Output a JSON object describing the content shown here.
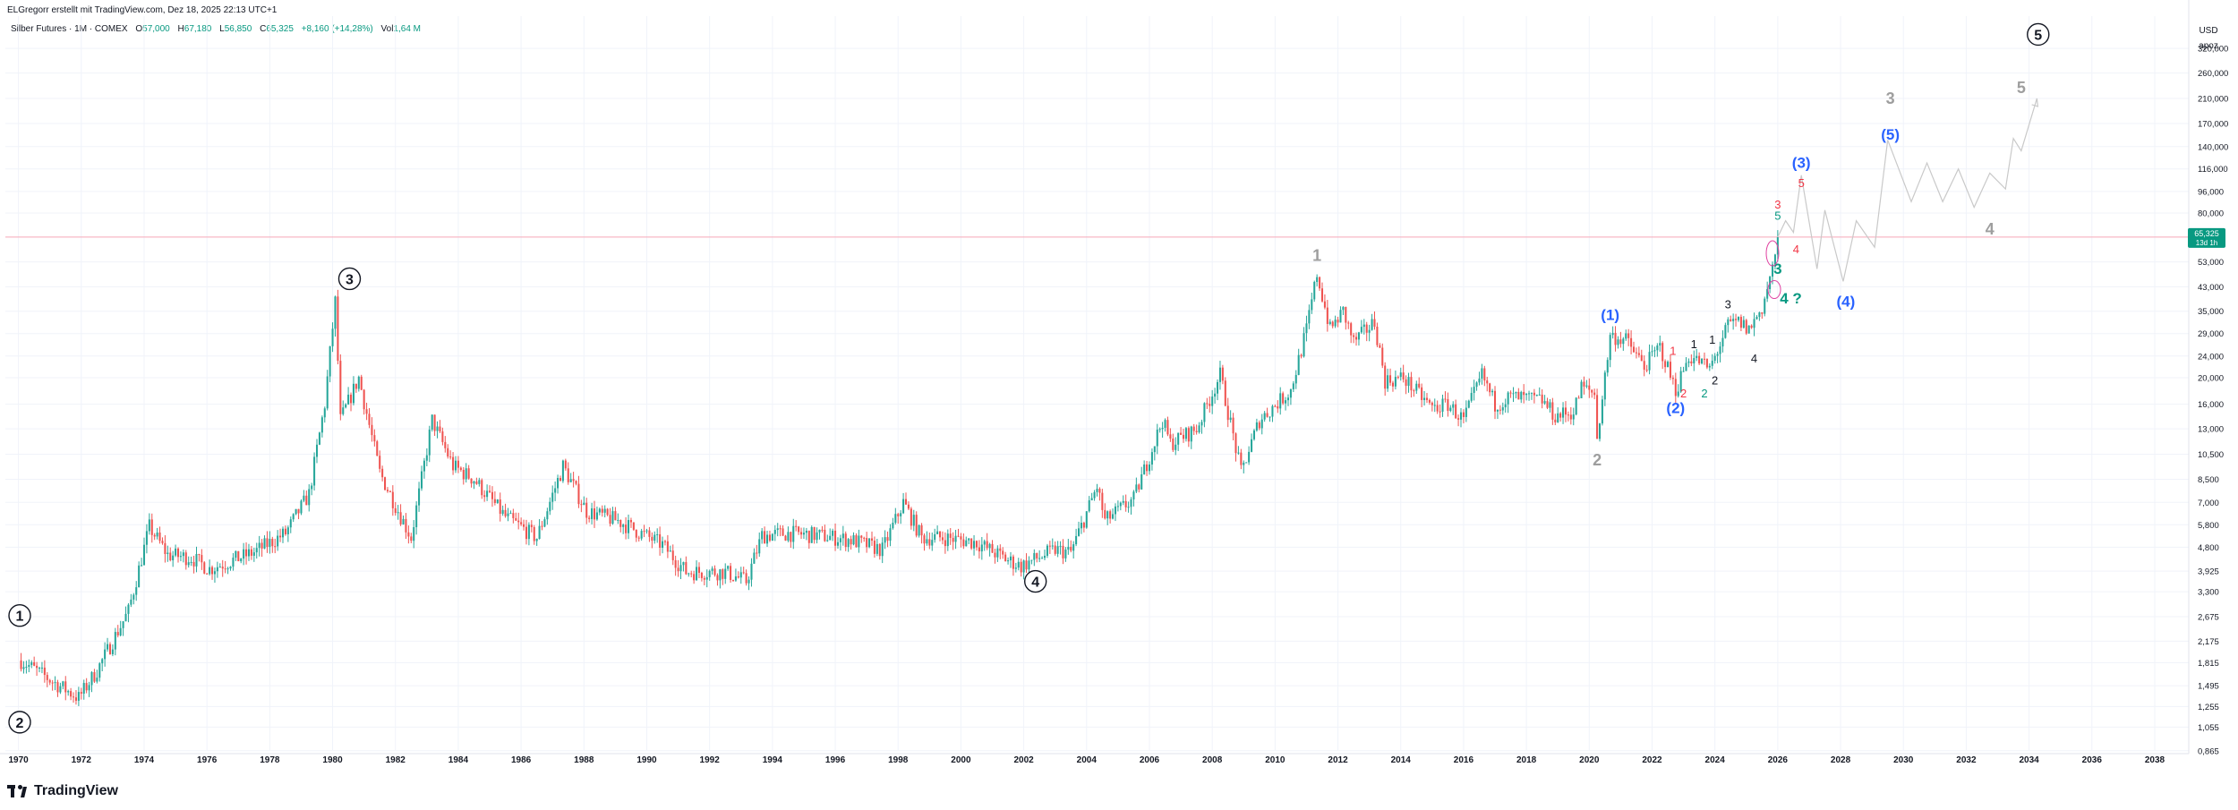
{
  "header": {
    "credit": "ELGregorr erstellt mit TradingView.com, Dez 18, 2025 22:13 UTC+1"
  },
  "symbol": {
    "name": "Silber Futures · 1M · COMEX",
    "open_key": "O",
    "open": "57,000",
    "high_key": "H",
    "high": "67,180",
    "low_key": "L",
    "low": "56,850",
    "close_key": "C",
    "close": "65,325",
    "change": "+8,160 (+14,28%)",
    "vol_key": "Vol",
    "vol": "1,64 M"
  },
  "axis_units": {
    "currency": "USD",
    "scale": "apoz"
  },
  "current_price": {
    "value": "65,325",
    "countdown": "13d 1h"
  },
  "footer": {
    "brand": "TradingView"
  },
  "chart_data": {
    "type": "candlestick",
    "x_axis": {
      "type": "date",
      "range": [
        "1969-07",
        "2039-01"
      ],
      "tick_labels": [
        "1970",
        "1972",
        "1974",
        "1976",
        "1978",
        "1980",
        "1982",
        "1984",
        "1986",
        "1988",
        "1990",
        "1992",
        "1994",
        "1996",
        "1998",
        "2000",
        "2002",
        "2004",
        "2006",
        "2008",
        "2010",
        "2012",
        "2014",
        "2016",
        "2018",
        "2020",
        "2022",
        "2024",
        "2026",
        "2028",
        "2030",
        "2032",
        "2034",
        "2036",
        "2038"
      ]
    },
    "y_axis": {
      "scale": "log",
      "range": [
        0.87,
        420
      ],
      "tick_labels": [
        "320,000",
        "260,000",
        "210,000",
        "170,000",
        "140,000",
        "116,000",
        "96,000",
        "80,000",
        "65,325",
        "53,000",
        "43,000",
        "35,000",
        "29,000",
        "24,000",
        "20,000",
        "16,000",
        "13,000",
        "10,500",
        "8,500",
        "7,000",
        "5,800",
        "4,800",
        "3,925",
        "3,300",
        "2,675",
        "2,175",
        "1,815",
        "1,495",
        "1,255",
        "1,055",
        "0,865"
      ]
    },
    "current_price_line": 65.325,
    "up_color": "#26a69a",
    "down_color": "#ef5350",
    "price_path": [
      [
        "1970-01",
        1.85
      ],
      [
        "1971-01",
        1.55
      ],
      [
        "1971-11",
        1.35
      ],
      [
        "1972-06",
        1.7
      ],
      [
        "1973-06",
        2.8
      ],
      [
        "1974-02",
        5.7
      ],
      [
        "1974-09",
        4.5
      ],
      [
        "1975-06",
        4.4
      ],
      [
        "1976-01",
        4.0
      ],
      [
        "1977-06",
        4.6
      ],
      [
        "1978-06",
        5.4
      ],
      [
        "1979-03",
        7.5
      ],
      [
        "1979-09",
        16.0
      ],
      [
        "1980-01",
        38.0
      ],
      [
        "1980-03",
        14.0
      ],
      [
        "1980-10",
        20.0
      ],
      [
        "1981-06",
        9.0
      ],
      [
        "1982-06",
        5.2
      ],
      [
        "1983-02",
        14.0
      ],
      [
        "1983-10",
        9.5
      ],
      [
        "1984-06",
        8.5
      ],
      [
        "1985-06",
        6.2
      ],
      [
        "1986-06",
        5.2
      ],
      [
        "1987-04",
        9.5
      ],
      [
        "1988-01",
        6.5
      ],
      [
        "1989-01",
        6.0
      ],
      [
        "1990-06",
        4.9
      ],
      [
        "1991-03",
        3.9
      ],
      [
        "1992-06",
        3.9
      ],
      [
        "1993-02",
        3.6
      ],
      [
        "1993-08",
        5.3
      ],
      [
        "1994-06",
        5.4
      ],
      [
        "1995-06",
        5.3
      ],
      [
        "1996-06",
        5.1
      ],
      [
        "1997-06",
        4.7
      ],
      [
        "1998-02",
        7.0
      ],
      [
        "1998-09",
        5.2
      ],
      [
        "1999-06",
        5.2
      ],
      [
        "2000-06",
        5.0
      ],
      [
        "2001-06",
        4.3
      ],
      [
        "2001-11",
        4.1
      ],
      [
        "2002-12",
        4.7
      ],
      [
        "2003-06",
        4.6
      ],
      [
        "2004-04",
        8.0
      ],
      [
        "2004-07",
        6.0
      ],
      [
        "2005-06",
        7.2
      ],
      [
        "2006-05",
        14.0
      ],
      [
        "2006-08",
        11.5
      ],
      [
        "2007-06",
        13.0
      ],
      [
        "2008-03",
        20.5
      ],
      [
        "2008-11",
        9.0
      ],
      [
        "2009-06",
        14.0
      ],
      [
        "2010-06",
        18.0
      ],
      [
        "2010-12",
        30.0
      ],
      [
        "2011-04",
        48.0
      ],
      [
        "2011-09",
        30.0
      ],
      [
        "2012-02",
        35.0
      ],
      [
        "2012-06",
        27.0
      ],
      [
        "2013-02",
        32.0
      ],
      [
        "2013-06",
        19.5
      ],
      [
        "2014-01",
        20.0
      ],
      [
        "2014-12",
        15.5
      ],
      [
        "2015-06",
        16.0
      ],
      [
        "2015-12",
        14.0
      ],
      [
        "2016-07",
        20.5
      ],
      [
        "2016-12",
        16.0
      ],
      [
        "2017-06",
        17.0
      ],
      [
        "2018-06",
        16.5
      ],
      [
        "2018-11",
        14.5
      ],
      [
        "2019-06",
        15.0
      ],
      [
        "2019-09",
        18.5
      ],
      [
        "2020-02",
        17.5
      ],
      [
        "2020-03",
        12.0
      ],
      [
        "2020-08",
        28.5
      ],
      [
        "2021-02",
        27.5
      ],
      [
        "2021-09",
        22.0
      ],
      [
        "2022-03",
        26.0
      ],
      [
        "2022-09",
        18.0
      ],
      [
        "2023-02",
        24.0
      ],
      [
        "2023-06",
        23.0
      ],
      [
        "2023-10",
        21.5
      ],
      [
        "2024-05",
        31.0
      ],
      [
        "2024-09",
        32.0
      ],
      [
        "2025-01",
        30.0
      ],
      [
        "2025-06",
        36.0
      ],
      [
        "2025-10",
        50.0
      ],
      [
        "2025-11",
        57.0
      ],
      [
        "2025-12",
        65.3
      ]
    ],
    "wave_labels": [
      {
        "text": "1",
        "x": "1969-07",
        "y": 2.7,
        "style": "circle"
      },
      {
        "text": "2",
        "x": "1969-07",
        "y": 1.1,
        "style": "circle"
      },
      {
        "text": "3",
        "x": "1980-01",
        "y": 46.0,
        "style": "circle"
      },
      {
        "text": "4",
        "x": "2001-11",
        "y": 3.6,
        "style": "circle"
      },
      {
        "text": "5",
        "x": "2033-10",
        "y": 360.0,
        "style": "circle"
      },
      {
        "text": "1",
        "x": "2011-04",
        "y": 56.0,
        "style": "gray"
      },
      {
        "text": "2",
        "x": "2020-03",
        "y": 10.0,
        "style": "gray"
      },
      {
        "text": "3",
        "x": "2029-07",
        "y": 210.0,
        "style": "gray"
      },
      {
        "text": "4",
        "x": "2032-09",
        "y": 70.0,
        "style": "gray"
      },
      {
        "text": "5",
        "x": "2033-09",
        "y": 230.0,
        "style": "gray"
      },
      {
        "text": "(1)",
        "x": "2020-08",
        "y": 34.0,
        "style": "blue"
      },
      {
        "text": "(2)",
        "x": "2022-09",
        "y": 15.5,
        "style": "blue"
      },
      {
        "text": "(3)",
        "x": "2026-09",
        "y": 122.0,
        "style": "blue"
      },
      {
        "text": "(4)",
        "x": "2028-02",
        "y": 38.0,
        "style": "blue"
      },
      {
        "text": "(5)",
        "x": "2029-07",
        "y": 155.0,
        "style": "blue"
      },
      {
        "text": "1",
        "x": "2022-08",
        "y": 25.0,
        "style": "red"
      },
      {
        "text": "2",
        "x": "2022-12",
        "y": 17.5,
        "style": "red"
      },
      {
        "text": "3",
        "x": "2026-00",
        "y": 86.0,
        "style": "red"
      },
      {
        "text": "4",
        "x": "2026-07",
        "y": 59.0,
        "style": "red"
      },
      {
        "text": "5",
        "x": "2026-09",
        "y": 103.0,
        "style": "red"
      },
      {
        "text": "1",
        "x": "2023-04",
        "y": 26.5,
        "style": "black"
      },
      {
        "text": "2",
        "x": "2024-00",
        "y": 19.5,
        "style": "black"
      },
      {
        "text": "1",
        "x": "2023-11",
        "y": 27.5,
        "style": "black"
      },
      {
        "text": "3",
        "x": "2024-05",
        "y": 37.0,
        "style": "black"
      },
      {
        "text": "4",
        "x": "2025-03",
        "y": 23.5,
        "style": "black"
      },
      {
        "text": "2",
        "x": "2023-08",
        "y": 17.5,
        "style": "green"
      },
      {
        "text": "5",
        "x": "2026-00",
        "y": 78.0,
        "style": "green"
      },
      {
        "text": "3",
        "x": "2026-00",
        "y": 50.0,
        "style": "teal-bold"
      },
      {
        "text": "4 ?",
        "x": "2026-05",
        "y": 39.0,
        "style": "teal-bold"
      }
    ],
    "projection_path": [
      [
        "2025-12",
        65.3
      ],
      [
        "2026-03",
        75.0
      ],
      [
        "2026-06",
        68.0
      ],
      [
        "2026-09",
        110.0
      ],
      [
        "2027-03",
        50.0
      ],
      [
        "2027-06",
        82.0
      ],
      [
        "2028-01",
        45.0
      ],
      [
        "2028-06",
        75.0
      ],
      [
        "2029-01",
        60.0
      ],
      [
        "2029-06",
        148.0
      ],
      [
        "2030-03",
        88.0
      ],
      [
        "2030-09",
        122.0
      ],
      [
        "2031-03",
        88.0
      ],
      [
        "2031-09",
        116.0
      ],
      [
        "2032-03",
        84.0
      ],
      [
        "2032-09",
        112.0
      ],
      [
        "2033-03",
        98.0
      ],
      [
        "2033-06",
        150.0
      ],
      [
        "2033-09",
        135.0
      ],
      [
        "2034-03",
        210.0
      ]
    ]
  }
}
